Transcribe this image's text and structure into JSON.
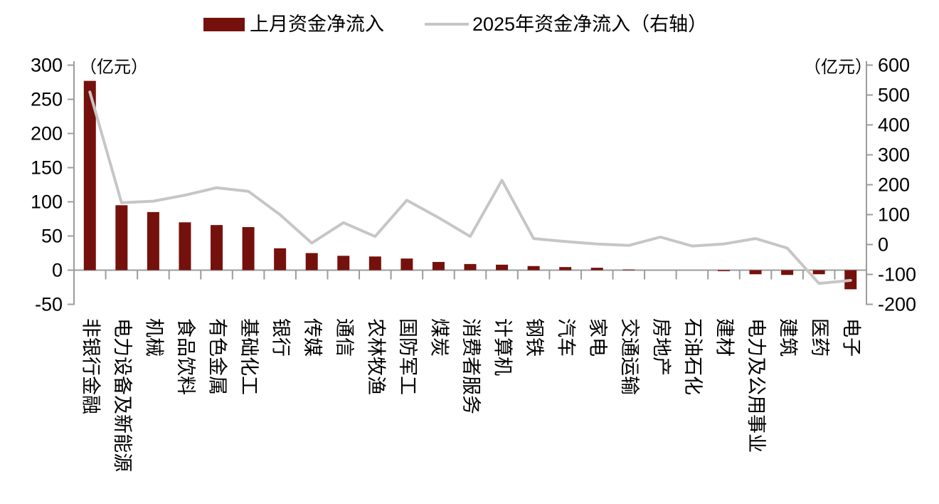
{
  "legend": {
    "bar_label": "上月资金净流入",
    "line_label": "2025年资金净流入（右轴）"
  },
  "units": {
    "left": "（亿元）",
    "right": "（亿元）"
  },
  "chart_data": {
    "type": "combo",
    "title": "",
    "categories": [
      "非银行金融",
      "电力设备及新能源",
      "机械",
      "食品饮料",
      "有色金属",
      "基础化工",
      "银行",
      "传媒",
      "通信",
      "农林牧渔",
      "国防军工",
      "煤炭",
      "消费者服务",
      "计算机",
      "钢铁",
      "汽车",
      "家电",
      "交通运输",
      "房地产",
      "石油石化",
      "建材",
      "电力及公用事业",
      "建筑",
      "医药",
      "电子"
    ],
    "series": [
      {
        "name": "上月资金净流入",
        "type": "bar",
        "axis": "left",
        "color": "#75110c",
        "values": [
          277,
          95,
          85,
          70,
          66,
          63,
          32,
          25,
          21,
          20,
          17,
          12,
          9,
          8,
          6,
          4.5,
          3.5,
          1,
          0,
          0,
          -1.5,
          -6,
          -7,
          -6,
          -28
        ]
      },
      {
        "name": "2025年资金净流入（右轴）",
        "type": "line",
        "axis": "right",
        "color": "#c6c6c6",
        "values": [
          510,
          140,
          145,
          165,
          190,
          178,
          100,
          5,
          73,
          27,
          148,
          90,
          27,
          215,
          20,
          10,
          2,
          -3,
          25,
          -5,
          2,
          20,
          -12,
          -130,
          -120
        ]
      }
    ],
    "left_axis": {
      "unit": "（亿元）",
      "ticks": [
        300,
        250,
        200,
        150,
        100,
        50,
        0,
        -50
      ],
      "ylim": [
        -50,
        300
      ]
    },
    "right_axis": {
      "unit": "（亿元）",
      "ticks": [
        600,
        500,
        400,
        300,
        200,
        100,
        0,
        -100,
        -200
      ],
      "ylim": [
        -200,
        600
      ]
    },
    "grid": false,
    "legend_position": "top-center",
    "axis_color": "#9c9c9c",
    "text_color": "#000000"
  }
}
